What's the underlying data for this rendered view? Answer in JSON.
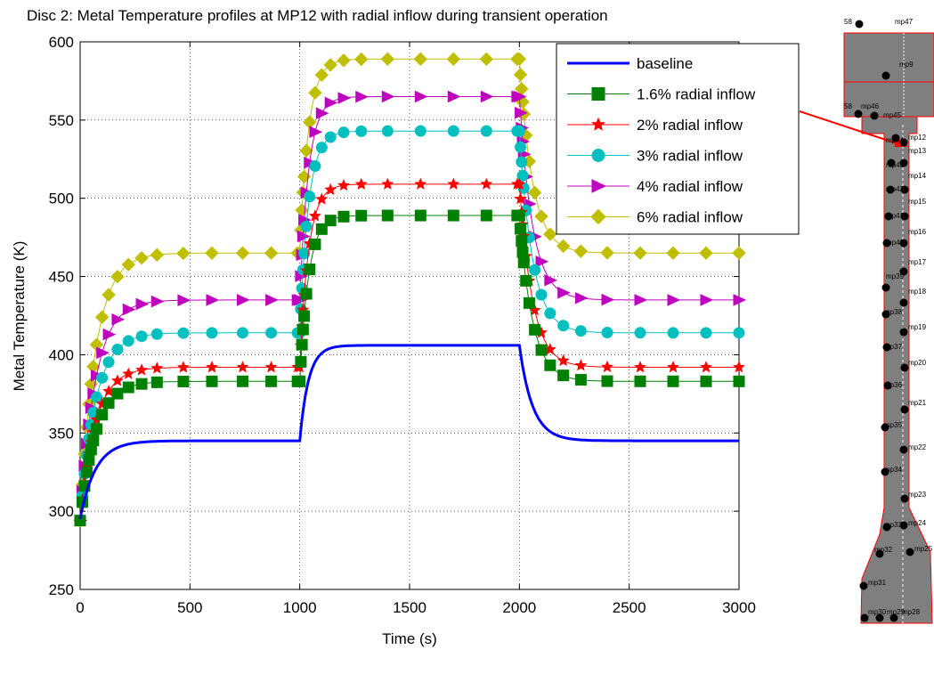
{
  "chart_data": {
    "type": "line",
    "title": "Disc 2: Metal Temperature profiles at MP12 with radial inflow during transient operation",
    "xlabel": "Time (s)",
    "ylabel": "Metal Temperature (K)",
    "xlim": [
      0,
      3000
    ],
    "ylim": [
      250,
      600
    ],
    "xticks": [
      0,
      500,
      1000,
      1500,
      2000,
      2500,
      3000
    ],
    "yticks": [
      250,
      300,
      350,
      400,
      450,
      500,
      550,
      600
    ],
    "grid": "dotted",
    "legend_position": "top-right",
    "series": [
      {
        "name": "baseline",
        "color": "#0000ff",
        "marker": "none",
        "start": 295,
        "low": 345,
        "high": 406
      },
      {
        "name": "1.6% radial inflow",
        "color": "#008000",
        "marker": "square",
        "start": 294,
        "low": 383,
        "high": 489
      },
      {
        "name": "2% radial inflow",
        "color": "#ff0000",
        "marker": "star",
        "start": 294,
        "low": 392,
        "high": 509
      },
      {
        "name": "3% radial inflow",
        "color": "#00bfbf",
        "marker": "circle",
        "start": 294,
        "low": 414,
        "high": 543
      },
      {
        "name": "4% radial inflow",
        "color": "#bf00bf",
        "marker": "triangle-right",
        "start": 294,
        "low": 435,
        "high": 565
      },
      {
        "name": "6% radial inflow",
        "color": "#bfbf00",
        "marker": "diamond",
        "start": 294,
        "low": 465,
        "high": 589
      }
    ]
  },
  "diagram": {
    "mp_labels": [
      {
        "id": "mp47",
        "text": "mp47"
      },
      {
        "id": "mp9",
        "text": "mp9"
      },
      {
        "id": "mp46",
        "text": "mp46"
      },
      {
        "id": "mp45",
        "text": "mp45"
      },
      {
        "id": "mp12",
        "text": "mp12"
      },
      {
        "id": "mp13",
        "text": "mp13"
      },
      {
        "id": "mp14",
        "text": "mp14"
      },
      {
        "id": "mp15",
        "text": "mp15"
      },
      {
        "id": "mp16",
        "text": "mp16"
      },
      {
        "id": "mp17",
        "text": "mp17"
      },
      {
        "id": "mp18",
        "text": "mp18"
      },
      {
        "id": "mp19",
        "text": "mp19"
      },
      {
        "id": "mp20",
        "text": "mp20"
      },
      {
        "id": "mp21",
        "text": "mp21"
      },
      {
        "id": "mp22",
        "text": "mp22"
      },
      {
        "id": "mp23",
        "text": "mp23"
      },
      {
        "id": "mp24",
        "text": "mp24"
      },
      {
        "id": "mp25",
        "text": "mp25"
      },
      {
        "id": "mp31",
        "text": "mp31"
      },
      {
        "id": "mp30",
        "text": "mp30"
      },
      {
        "id": "mp29",
        "text": "mp29"
      },
      {
        "id": "mp28",
        "text": "mp28"
      },
      {
        "id": "mp32",
        "text": "mp32"
      },
      {
        "id": "mp33",
        "text": "mp33"
      },
      {
        "id": "mp34",
        "text": "mp34"
      },
      {
        "id": "mp35",
        "text": "mp35"
      },
      {
        "id": "mp36",
        "text": "mp36"
      },
      {
        "id": "mp37",
        "text": "mp37"
      },
      {
        "id": "mp38",
        "text": "mp38"
      },
      {
        "id": "mp39",
        "text": "mp39"
      },
      {
        "id": "mp40",
        "text": "mp40"
      },
      {
        "id": "mp41",
        "text": "mp41"
      },
      {
        "id": "mp42",
        "text": "mp42"
      },
      {
        "id": "mp43",
        "text": "mp43"
      },
      {
        "id": "mp44",
        "text": "mp44"
      },
      {
        "id": "edge_58",
        "text": "58"
      },
      {
        "id": "edge_58b",
        "text": "58"
      }
    ]
  }
}
